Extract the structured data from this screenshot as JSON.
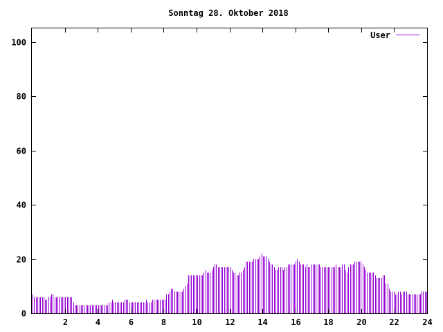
{
  "chart_data": {
    "type": "bar",
    "title": "Sonntag 28. Oktober 2018",
    "xlabel": "",
    "ylabel": "",
    "xlim": [
      0,
      24
    ],
    "ylim": [
      0,
      105
    ],
    "x_ticks": [
      2,
      4,
      6,
      8,
      10,
      12,
      14,
      16,
      18,
      20,
      22,
      24
    ],
    "y_ticks": [
      0,
      20,
      40,
      60,
      80,
      100
    ],
    "grid": false,
    "legend": "top-right",
    "series": [
      {
        "name": "User",
        "color": "#9400d3",
        "values": [
          7,
          6,
          6,
          6,
          6,
          6,
          6,
          6,
          5,
          5,
          6,
          6,
          7,
          7,
          6,
          6,
          6,
          6,
          6,
          6,
          6,
          6,
          6,
          6,
          6,
          6,
          4,
          3,
          3,
          3,
          3,
          3,
          3,
          3,
          3,
          3,
          3,
          3,
          3,
          3,
          3,
          3,
          3,
          3,
          3,
          3,
          3,
          3,
          3,
          4,
          4,
          5,
          4,
          4,
          4,
          4,
          4,
          4,
          4,
          5,
          5,
          5,
          4,
          4,
          4,
          4,
          4,
          4,
          4,
          4,
          4,
          4,
          4,
          5,
          4,
          4,
          4,
          5,
          5,
          5,
          5,
          5,
          5,
          5,
          5,
          5,
          7,
          7,
          8,
          9,
          9,
          8,
          8,
          8,
          8,
          8,
          8,
          9,
          10,
          11,
          14,
          14,
          14,
          14,
          14,
          14,
          14,
          14,
          14,
          14,
          15,
          16,
          15,
          15,
          15,
          16,
          17,
          18,
          18,
          17,
          17,
          17,
          17,
          17,
          17,
          17,
          17,
          17,
          16,
          15,
          15,
          14,
          14,
          15,
          15,
          16,
          17,
          19,
          19,
          19,
          19,
          19,
          20,
          20,
          20,
          20,
          21,
          22,
          21,
          21,
          21,
          20,
          19,
          18,
          18,
          17,
          16,
          16,
          17,
          17,
          17,
          16,
          17,
          17,
          18,
          18,
          18,
          18,
          18,
          19,
          20,
          19,
          18,
          18,
          18,
          17,
          18,
          17,
          17,
          18,
          18,
          18,
          18,
          18,
          18,
          17,
          17,
          17,
          17,
          17,
          17,
          17,
          17,
          17,
          17,
          18,
          17,
          17,
          17,
          18,
          18,
          16,
          15,
          17,
          18,
          18,
          18,
          19,
          19,
          19,
          19,
          19,
          18,
          17,
          16,
          15,
          15,
          15,
          15,
          15,
          14,
          13,
          13,
          13,
          13,
          14,
          14,
          11,
          11,
          9,
          8,
          8,
          8,
          7,
          7,
          8,
          8,
          7,
          8,
          8,
          8,
          7,
          7,
          7,
          7,
          7,
          7,
          7,
          7,
          7,
          8,
          8,
          8,
          8
        ]
      }
    ]
  }
}
